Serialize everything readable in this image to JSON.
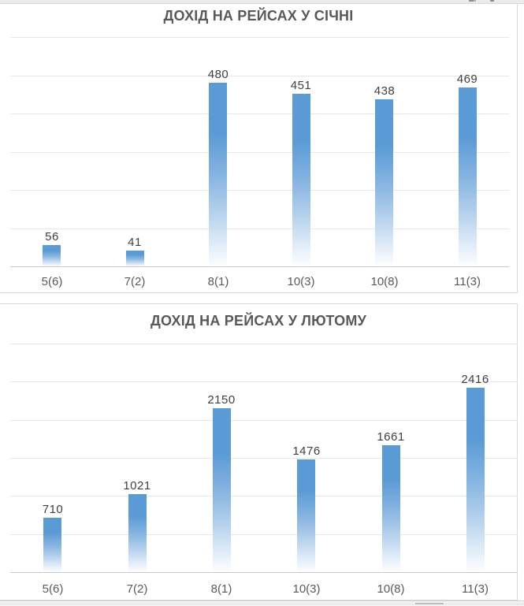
{
  "colors": {
    "bar_top": "#5b9bd5",
    "bar_bottom": "#ffffff",
    "title_text": "#595959",
    "value_label_text": "#404040",
    "category_label_text": "#595959",
    "gridline": "#e7e7e7",
    "axis_line": "#c8c8c8",
    "card_border": "#d9d9d9"
  },
  "chart_data": [
    {
      "type": "bar",
      "title": "ДОХІД НА РЕЙСАХ У СІЧНІ",
      "categories": [
        "5(6)",
        "7(2)",
        "8(1)",
        "10(3)",
        "10(8)",
        "11(3)"
      ],
      "values": [
        56,
        41,
        480,
        451,
        438,
        469
      ],
      "xlabel": "",
      "ylabel": "",
      "ylim": [
        0,
        600
      ],
      "gridline_step": 100,
      "grid": true,
      "legend_position": "none",
      "data_labels": true,
      "bar_color": "#5b9bd5"
    },
    {
      "type": "bar",
      "title": "ДОХІД НА РЕЙСАХ У ЛЮТОМУ",
      "categories": [
        "5(6)",
        "7(2)",
        "8(1)",
        "10(3)",
        "10(8)",
        "11(3)"
      ],
      "values": [
        710,
        1021,
        2150,
        1476,
        1661,
        2416
      ],
      "xlabel": "",
      "ylabel": "",
      "ylim": [
        0,
        3000
      ],
      "gridline_step": 500,
      "grid": true,
      "legend_position": "none",
      "data_labels": true,
      "bar_color": "#5b9bd5"
    }
  ]
}
